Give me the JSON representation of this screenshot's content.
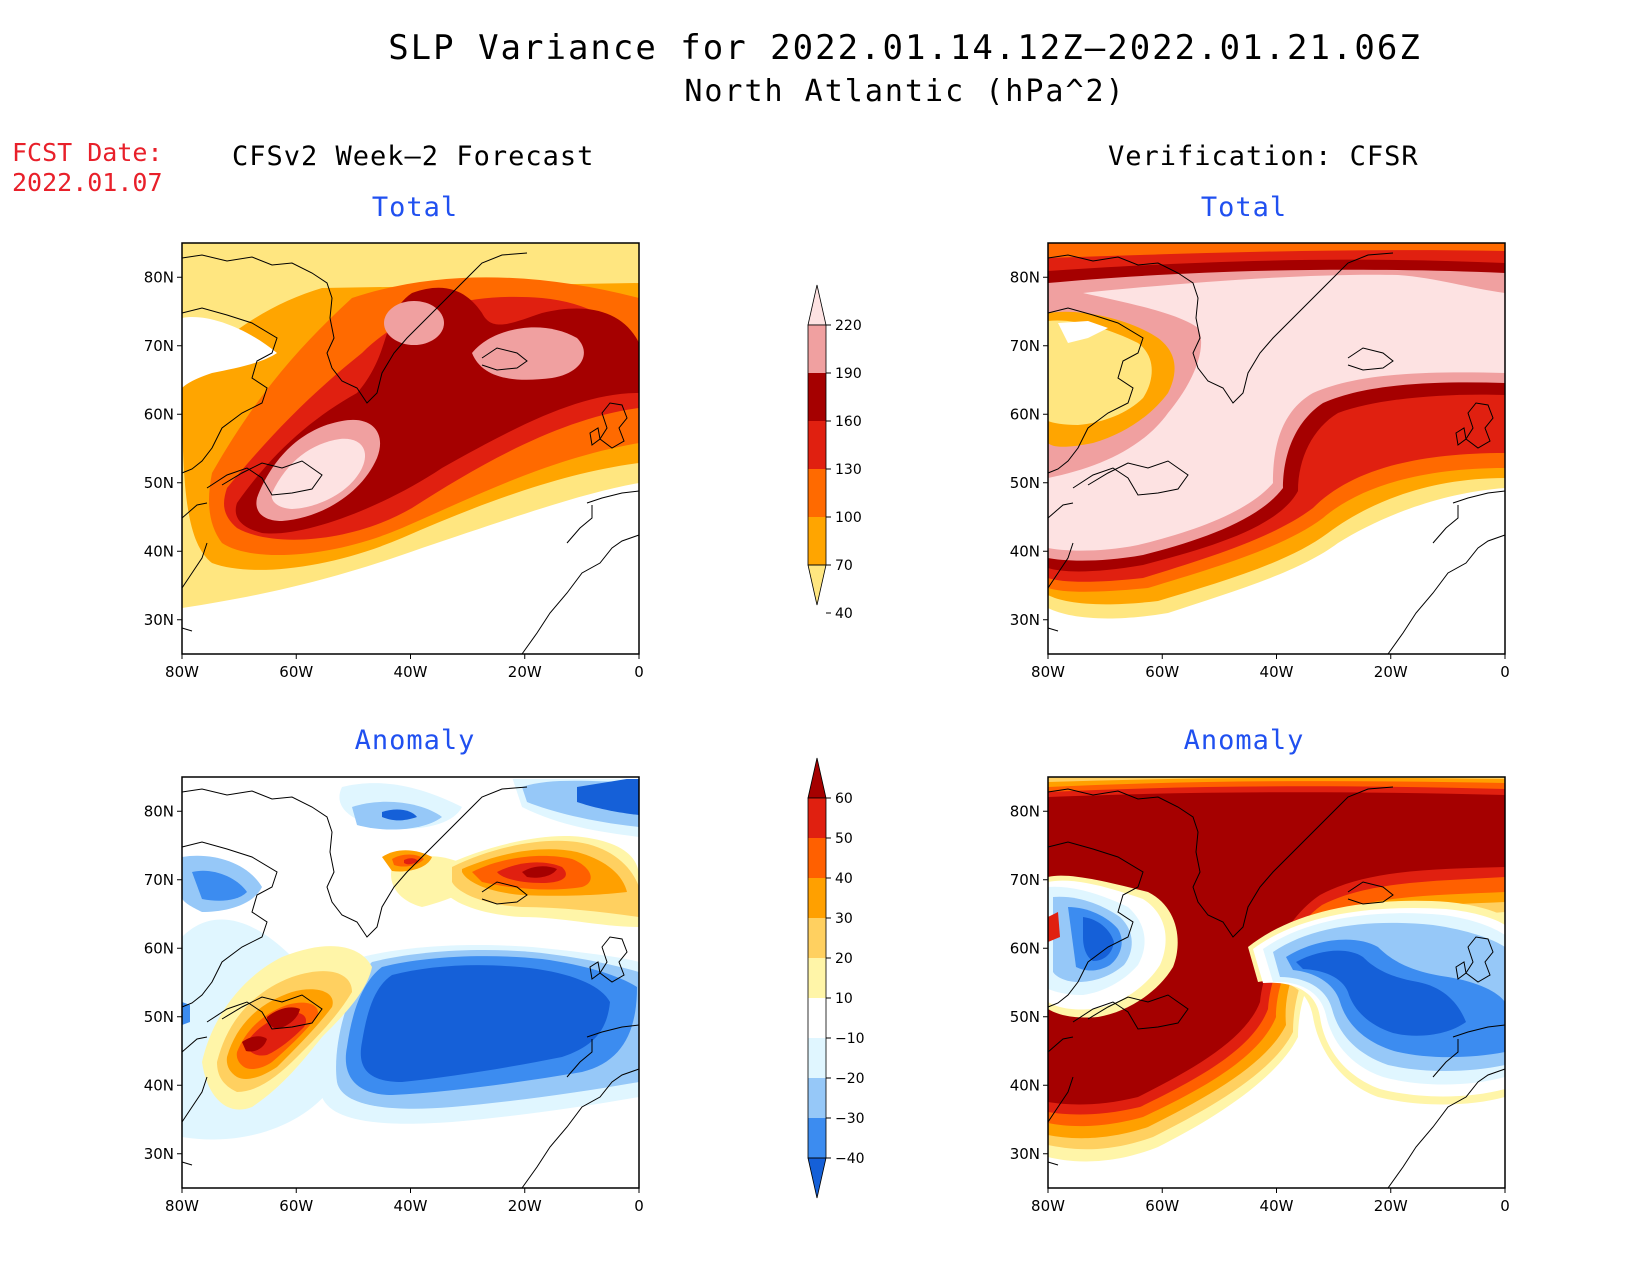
{
  "title": "SLP Variance for 2022.01.14.12Z–2022.01.21.06Z",
  "subtitle": "North Atlantic (hPa^2)",
  "fcst_label": "FCST Date:",
  "fcst_date": "2022.01.07",
  "columns": {
    "left": "CFSv2 Week–2 Forecast",
    "right": "Verification: CFSR"
  },
  "panel_titles": {
    "total": "Total",
    "anomaly": "Anomaly"
  },
  "axes": {
    "lat_labels": [
      "80N",
      "70N",
      "60N",
      "50N",
      "40N",
      "30N"
    ],
    "lon_labels": [
      "80W",
      "60W",
      "40W",
      "20W",
      "0"
    ],
    "lat_range": [
      25,
      85
    ],
    "lon_range": [
      -80,
      0
    ]
  },
  "chart_data": [
    {
      "type": "heatmap",
      "title": "Total",
      "column": "CFSv2 Week–2 Forecast",
      "levels": [
        40,
        70,
        100,
        130,
        160,
        190,
        220
      ],
      "colors": [
        "#ffe680",
        "#ffa500",
        "#ff6a00",
        "#e02010",
        "#a50000",
        "#f0a0a0",
        "#fde2e2"
      ],
      "regions": [
        {
          "level": 220,
          "center_lon": -53,
          "center_lat": 49,
          "note": "maximum near Newfoundland"
        },
        {
          "level": 190,
          "center_lon": -35,
          "center_lat": 71
        },
        {
          "level": 190,
          "center_lon": -18,
          "center_lat": 67
        }
      ]
    },
    {
      "type": "heatmap",
      "title": "Total",
      "column": "Verification: CFSR",
      "levels": [
        40,
        70,
        100,
        130,
        160,
        190,
        220
      ],
      "colors": [
        "#ffe680",
        "#ffa500",
        "#ff6a00",
        "#e02010",
        "#a50000",
        "#f0a0a0",
        "#fde2e2"
      ],
      "regions": [
        {
          "level": 220,
          "center_lon": -45,
          "center_lat": 58,
          "note": "broad maximum over Greenland to mid-Atlantic"
        }
      ]
    },
    {
      "type": "heatmap",
      "title": "Anomaly",
      "column": "CFSv2 Week–2 Forecast",
      "levels": [
        -40,
        -30,
        -20,
        -10,
        10,
        20,
        30,
        40,
        50,
        60
      ],
      "colors": [
        "#1560d8",
        "#3c8cf0",
        "#96c8f8",
        "#e0f6ff",
        "#ffffff",
        "#fff5a8",
        "#ffd060",
        "#ffa000",
        "#ff6000",
        "#e02010",
        "#a50000"
      ],
      "regions": [
        {
          "level": -40,
          "center_lon": -27,
          "center_lat": 49,
          "note": "negative anomaly central Atlantic"
        },
        {
          "level": 60,
          "center_lon": -63,
          "center_lat": 48,
          "note": "positive anomaly Newfoundland"
        },
        {
          "level": 60,
          "center_lon": -16,
          "center_lat": 68,
          "note": "positive anomaly near Iceland"
        }
      ]
    },
    {
      "type": "heatmap",
      "title": "Anomaly",
      "column": "Verification: CFSR",
      "levels": [
        -40,
        -30,
        -20,
        -10,
        10,
        20,
        30,
        40,
        50,
        60
      ],
      "colors": [
        "#1560d8",
        "#3c8cf0",
        "#96c8f8",
        "#e0f6ff",
        "#ffffff",
        "#fff5a8",
        "#ffd060",
        "#ffa000",
        "#ff6000",
        "#e02010",
        "#a50000"
      ],
      "regions": [
        {
          "level": 60,
          "center_lon": -45,
          "center_lat": 60,
          "note": "large positive anomaly"
        },
        {
          "level": -40,
          "center_lon": -18,
          "center_lat": 52,
          "note": "negative anomaly east Atlantic"
        },
        {
          "level": -40,
          "center_lon": -70,
          "center_lat": 60,
          "note": "negative anomaly Labrador"
        }
      ]
    }
  ],
  "colorbars": {
    "total": {
      "labels": [
        "220",
        "190",
        "160",
        "130",
        "100",
        "70",
        "40"
      ],
      "colors": [
        "#fde2e2",
        "#f0a0a0",
        "#a50000",
        "#e02010",
        "#ff6a00",
        "#ffa500",
        "#ffe680"
      ]
    },
    "anomaly": {
      "labels": [
        "60",
        "50",
        "40",
        "30",
        "20",
        "10",
        "−10",
        "−20",
        "−30",
        "−40"
      ],
      "colors": [
        "#a50000",
        "#e02010",
        "#ff6000",
        "#ffa000",
        "#ffd060",
        "#fff5a8",
        "#ffffff",
        "#e0f6ff",
        "#96c8f8",
        "#3c8cf0",
        "#1560d8"
      ]
    }
  }
}
